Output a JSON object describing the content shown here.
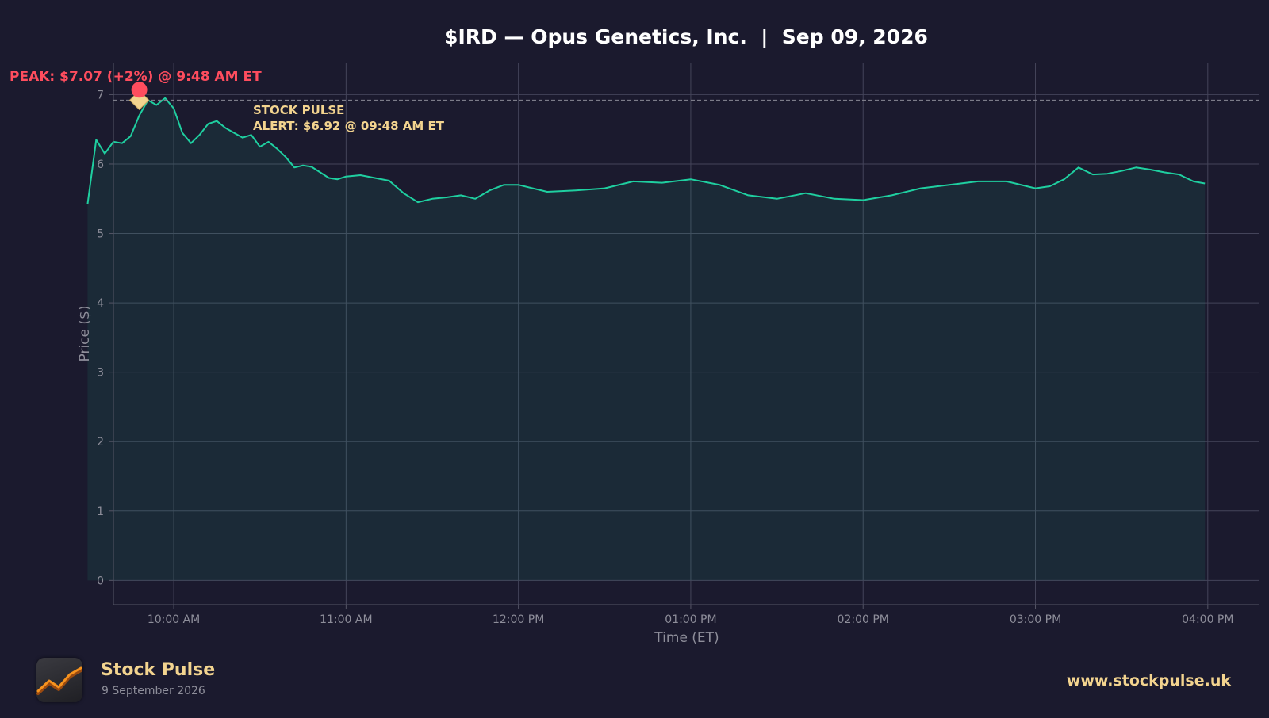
{
  "chart_data": {
    "type": "area",
    "title": "$IRD — Opus Genetics, Inc.  |  Sep 09, 2026",
    "xlabel": "Time (ET)",
    "ylabel": "Price ($)",
    "xlim": [
      "09:39",
      "16:18"
    ],
    "ylim": [
      -0.35,
      7.45
    ],
    "y_ticks": [
      0,
      1,
      2,
      3,
      4,
      5,
      6,
      7
    ],
    "x_ticks": [
      "10:00 AM",
      "11:00 AM",
      "12:00 PM",
      "01:00 PM",
      "02:00 PM",
      "03:00 PM",
      "04:00 PM"
    ],
    "grid": true,
    "line_color": "#1fcfa0",
    "reference_line": 6.92,
    "series": [
      {
        "x": [
          "09:30",
          "09:33",
          "09:36",
          "09:39",
          "09:42",
          "09:45",
          "09:48",
          "09:51",
          "09:54",
          "09:57",
          "10:00",
          "10:03",
          "10:06",
          "10:09",
          "10:12",
          "10:15",
          "10:18",
          "10:21",
          "10:24",
          "10:27",
          "10:30",
          "10:33",
          "10:36",
          "10:39",
          "10:42",
          "10:45",
          "10:48",
          "10:51",
          "10:54",
          "10:57",
          "11:00",
          "11:05",
          "11:10",
          "11:15",
          "11:20",
          "11:25",
          "11:30",
          "11:35",
          "11:40",
          "11:45",
          "11:50",
          "11:55",
          "12:00",
          "12:10",
          "12:20",
          "12:30",
          "12:40",
          "12:50",
          "13:00",
          "13:10",
          "13:20",
          "13:30",
          "13:40",
          "13:50",
          "14:00",
          "14:10",
          "14:20",
          "14:30",
          "14:40",
          "14:50",
          "15:00",
          "15:05",
          "15:10",
          "15:15",
          "15:20",
          "15:25",
          "15:30",
          "15:35",
          "15:40",
          "15:45",
          "15:50",
          "15:55",
          "15:59"
        ],
        "y": [
          5.42,
          6.35,
          6.15,
          6.32,
          6.3,
          6.4,
          6.7,
          6.92,
          6.85,
          6.95,
          6.8,
          6.45,
          6.3,
          6.42,
          6.58,
          6.62,
          6.52,
          6.45,
          6.38,
          6.42,
          6.25,
          6.32,
          6.22,
          6.1,
          5.95,
          5.98,
          5.96,
          5.88,
          5.8,
          5.78,
          5.82,
          5.84,
          5.8,
          5.76,
          5.58,
          5.45,
          5.5,
          5.52,
          5.55,
          5.5,
          5.62,
          5.7,
          5.7,
          5.6,
          5.62,
          5.65,
          5.75,
          5.73,
          5.78,
          5.7,
          5.55,
          5.5,
          5.58,
          5.5,
          5.48,
          5.55,
          5.65,
          5.7,
          5.75,
          5.75,
          5.65,
          5.68,
          5.78,
          5.95,
          5.85,
          5.86,
          5.9,
          5.95,
          5.92,
          5.88,
          5.85,
          5.75,
          5.72
        ]
      }
    ],
    "peak": {
      "x": "09:48",
      "y": 7.07,
      "label": "PEAK: $7.07 (+2%) @ 9:48 AM ET"
    },
    "alert": {
      "x": "09:48",
      "y": 6.92,
      "label_line1": "STOCK PULSE",
      "label_line2": "ALERT: $6.92 @ 09:48 AM ET"
    }
  },
  "footer": {
    "brand": "Stock Pulse",
    "date": "9 September 2026",
    "url": "www.stockpulse.uk",
    "logo_icon": "trend-line-icon"
  }
}
